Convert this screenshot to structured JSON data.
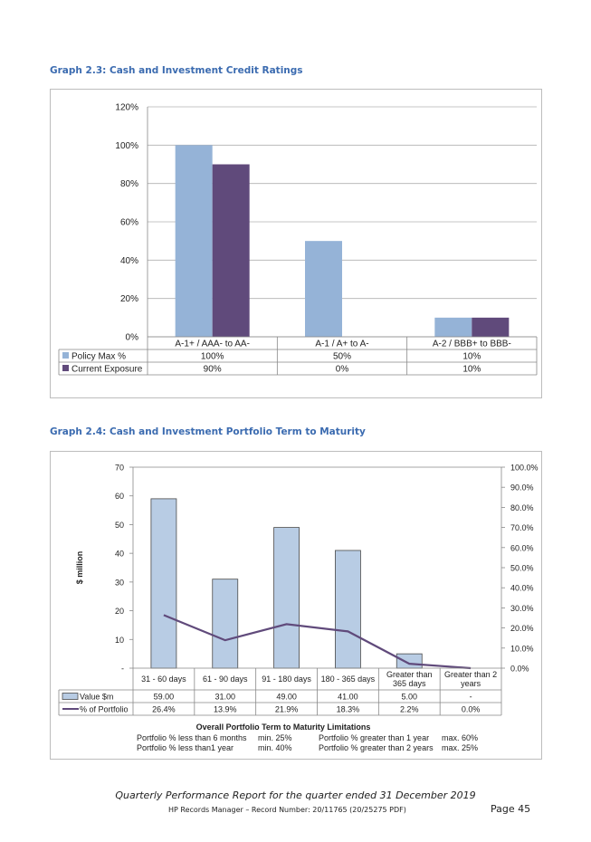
{
  "graph3": {
    "heading": "Graph 2.3:  Cash and Investment Credit Ratings",
    "chart_data": {
      "type": "bar",
      "categories": [
        "A-1+ / AAA- to AA-",
        "A-1 / A+ to A-",
        "A-2 / BBB+ to BBB-"
      ],
      "series": [
        {
          "name": "Policy Max %",
          "values": [
            100,
            50,
            10
          ],
          "table_values": [
            "100%",
            "50%",
            "10%"
          ],
          "color": "#95b3d7"
        },
        {
          "name": "Current Exposure",
          "values": [
            90,
            0,
            10
          ],
          "table_values": [
            "90%",
            "0%",
            "10%"
          ],
          "color": "#604a7b"
        }
      ],
      "ylim": [
        0,
        120
      ],
      "yticks": [
        "0%",
        "20%",
        "40%",
        "60%",
        "80%",
        "100%",
        "120%"
      ],
      "grid": true,
      "legend": "data-table"
    }
  },
  "graph4": {
    "heading": "Graph 2.4:  Cash and Investment Portfolio Term to Maturity",
    "chart_data": {
      "type": "bar",
      "categories": [
        [
          "31 - 60 days"
        ],
        [
          "61 - 90 days"
        ],
        [
          "91 - 180 days"
        ],
        [
          "180 - 365 days"
        ],
        [
          "Greater than",
          "365 days"
        ],
        [
          "Greater than 2",
          "years"
        ]
      ],
      "series": [
        {
          "name": "Value $m",
          "type": "bar",
          "axis": "left",
          "values": [
            59.0,
            31.0,
            49.0,
            41.0,
            5.0,
            0
          ],
          "table_values": [
            "59.00",
            "31.00",
            "49.00",
            "41.00",
            "5.00",
            "-"
          ],
          "color": "#b8cce4"
        },
        {
          "name": "% of Portfolio",
          "type": "line",
          "axis": "right",
          "values": [
            26.4,
            13.9,
            21.9,
            18.3,
            2.2,
            0.0
          ],
          "table_values": [
            "26.4%",
            "13.9%",
            "21.9%",
            "18.3%",
            "2.2%",
            "0.0%"
          ],
          "color": "#604a7b"
        }
      ],
      "ylabel": "$ million",
      "ylim": [
        0,
        70
      ],
      "yticks": [
        "-",
        "10",
        "20",
        "30",
        "40",
        "50",
        "60",
        "70"
      ],
      "y2lim": [
        0,
        100
      ],
      "y2ticks": [
        "0.0%",
        "10.0%",
        "20.0%",
        "30.0%",
        "40.0%",
        "50.0%",
        "60.0%",
        "70.0%",
        "80.0%",
        "90.0%",
        "100.0%"
      ],
      "grid": false,
      "legend": "data-table"
    },
    "limits": {
      "title": "Overall Portfolio Term to Maturity Limitations",
      "rows": [
        [
          "Portfolio % less than 6 months",
          "min. 25%",
          "Portfolio % greater than 1 year",
          "max. 60%"
        ],
        [
          "Portfolio % less than1 year",
          "min. 40%",
          "Portfolio % greater than 2 years",
          "max. 25%"
        ]
      ]
    }
  },
  "footer": {
    "title": "Quarterly Performance Report for the quarter ended 31 December 2019",
    "record": "HP Records Manager – Record Number: 20/11765 (20/25275 PDF)",
    "page": "Page 45"
  }
}
